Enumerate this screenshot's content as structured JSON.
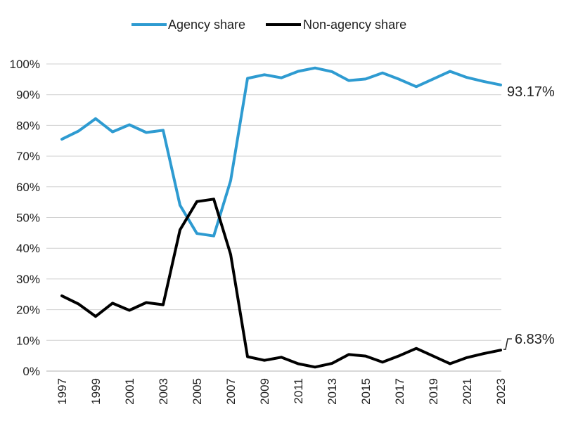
{
  "chart_data": {
    "type": "line",
    "title": "",
    "xlabel": "",
    "ylabel": "",
    "x": [
      1997,
      1998,
      1999,
      2000,
      2001,
      2002,
      2003,
      2004,
      2005,
      2006,
      2007,
      2008,
      2009,
      2010,
      2011,
      2012,
      2013,
      2014,
      2015,
      2016,
      2017,
      2018,
      2019,
      2020,
      2021,
      2022,
      2023
    ],
    "x_tick_labels": [
      "1997",
      "1999",
      "2001",
      "2003",
      "2005",
      "2007",
      "2009",
      "2011",
      "2013",
      "2015",
      "2017",
      "2019",
      "2021",
      "2023"
    ],
    "y_tick_labels": [
      "0%",
      "10%",
      "20%",
      "30%",
      "40%",
      "50%",
      "60%",
      "70%",
      "80%",
      "90%",
      "100%"
    ],
    "ylim": [
      0,
      100
    ],
    "grid": true,
    "legend_position": "top-center",
    "series": [
      {
        "name": "Agency share",
        "color": "#2E9BD1",
        "values": [
          75.5,
          78.2,
          82.2,
          77.9,
          80.2,
          77.7,
          78.4,
          54.0,
          44.8,
          44.0,
          62.0,
          95.3,
          96.5,
          95.5,
          97.6,
          98.7,
          97.5,
          94.6,
          95.1,
          97.1,
          95.0,
          92.6,
          95.1,
          97.6,
          95.6,
          94.3,
          93.17
        ],
        "end_label": "93.17%"
      },
      {
        "name": "Non-agency share",
        "color": "#000000",
        "values": [
          24.5,
          21.8,
          17.8,
          22.1,
          19.8,
          22.3,
          21.6,
          46.0,
          55.2,
          56.0,
          38.0,
          4.7,
          3.5,
          4.5,
          2.4,
          1.3,
          2.5,
          5.4,
          4.9,
          2.9,
          5.0,
          7.4,
          4.9,
          2.4,
          4.4,
          5.7,
          6.83
        ],
        "end_label": "6.83%"
      }
    ]
  }
}
